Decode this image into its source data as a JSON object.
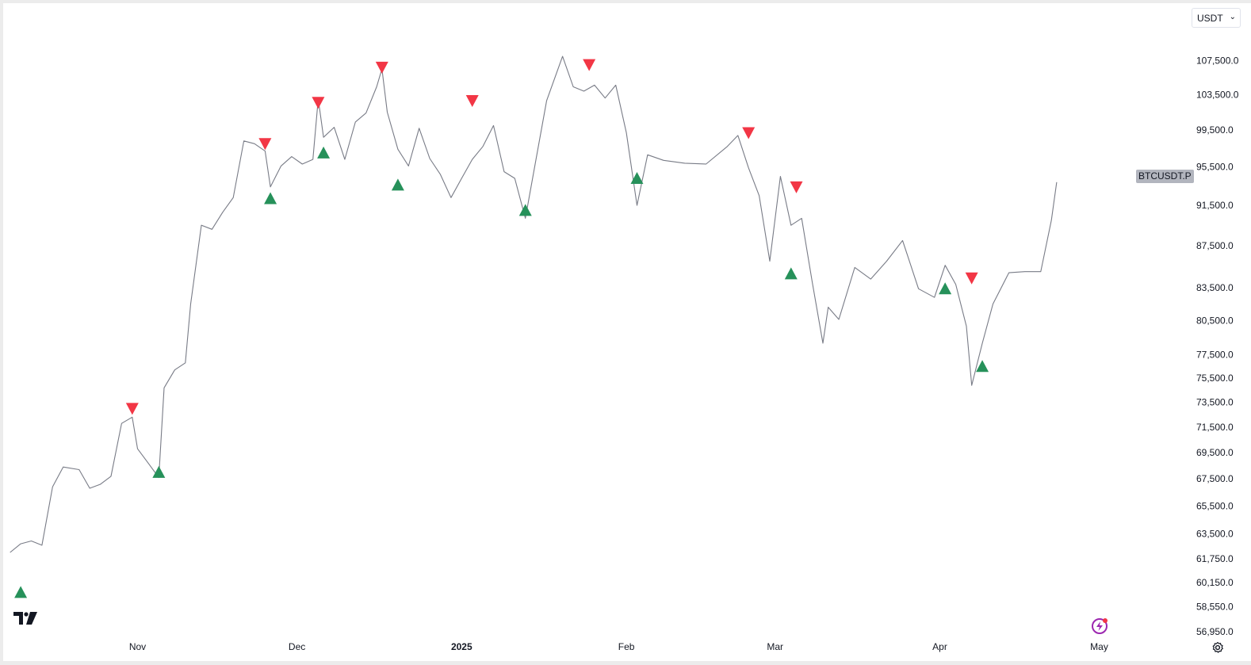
{
  "currency": {
    "label": "USDT",
    "chevron": "⌄"
  },
  "symbol_tag": "BTCUSDT.P",
  "icons": {
    "logo": "tradingview-logo-icon",
    "flash": "lightning-icon",
    "settings": "gear-icon"
  },
  "colors": {
    "price_line": "#787b86",
    "up_marker": "#26915a",
    "down_marker": "#f23645"
  },
  "chart_data": {
    "type": "line",
    "series": [
      {
        "name": "BTCUSDT.P",
        "x": [
          "2024-10-08",
          "2024-10-10",
          "2024-10-12",
          "2024-10-14",
          "2024-10-16",
          "2024-10-18",
          "2024-10-21",
          "2024-10-23",
          "2024-10-25",
          "2024-10-27",
          "2024-10-29",
          "2024-10-31",
          "2024-11-01",
          "2024-11-03",
          "2024-11-05",
          "2024-11-06",
          "2024-11-08",
          "2024-11-10",
          "2024-11-11",
          "2024-11-13",
          "2024-11-15",
          "2024-11-17",
          "2024-11-19",
          "2024-11-21",
          "2024-11-23",
          "2024-11-25",
          "2024-11-26",
          "2024-11-28",
          "2024-11-30",
          "2024-12-02",
          "2024-12-04",
          "2024-12-05",
          "2024-12-06",
          "2024-12-08",
          "2024-12-10",
          "2024-12-12",
          "2024-12-14",
          "2024-12-16",
          "2024-12-17",
          "2024-12-18",
          "2024-12-20",
          "2024-12-22",
          "2024-12-24",
          "2024-12-26",
          "2024-12-28",
          "2024-12-30",
          "2025-01-01",
          "2025-01-03",
          "2025-01-05",
          "2025-01-07",
          "2025-01-09",
          "2025-01-11",
          "2025-01-13",
          "2025-01-15",
          "2025-01-17",
          "2025-01-20",
          "2025-01-22",
          "2025-01-24",
          "2025-01-26",
          "2025-01-28",
          "2025-01-30",
          "2025-02-01",
          "2025-02-03",
          "2025-02-05",
          "2025-02-08",
          "2025-02-12",
          "2025-02-16",
          "2025-02-20",
          "2025-02-22",
          "2025-02-24",
          "2025-02-26",
          "2025-02-28",
          "2025-03-02",
          "2025-03-04",
          "2025-03-06",
          "2025-03-08",
          "2025-03-10",
          "2025-03-11",
          "2025-03-13",
          "2025-03-16",
          "2025-03-19",
          "2025-03-22",
          "2025-03-25",
          "2025-03-28",
          "2025-03-31",
          "2025-04-02",
          "2025-04-04",
          "2025-04-06",
          "2025-04-07",
          "2025-04-09",
          "2025-04-11",
          "2025-04-14",
          "2025-04-17",
          "2025-04-20",
          "2025-04-22",
          "2025-04-23"
        ],
        "y": [
          62200,
          62800,
          63000,
          62700,
          66900,
          68400,
          68200,
          66800,
          67100,
          67700,
          71800,
          72300,
          69800,
          68700,
          67600,
          74700,
          76200,
          76800,
          82000,
          89500,
          89100,
          90800,
          92300,
          98300,
          98000,
          97200,
          93400,
          95600,
          96600,
          95800,
          96300,
          103000,
          98700,
          99800,
          96300,
          100400,
          101400,
          104400,
          106500,
          101500,
          97400,
          95600,
          99700,
          96400,
          94700,
          92300,
          94300,
          96300,
          97700,
          100000,
          95000,
          94300,
          90200,
          96300,
          102800,
          108000,
          104400,
          103900,
          104600,
          103100,
          104600,
          99200,
          91500,
          96800,
          96200,
          95900,
          95800,
          97700,
          98900,
          95400,
          92500,
          86000,
          94500,
          89500,
          90200,
          84000,
          78500,
          81700,
          80600,
          85400,
          84300,
          86000,
          88000,
          83400,
          82600,
          85600,
          83800,
          80000,
          74900,
          78500,
          82000,
          84900,
          85000,
          85000,
          90000,
          93900
        ],
        "up_markers": [
          [
            "2024-10-10",
            59500
          ],
          [
            "2024-11-05",
            68000
          ],
          [
            "2024-11-26",
            92200
          ],
          [
            "2024-12-06",
            97000
          ],
          [
            "2024-12-20",
            93600
          ],
          [
            "2025-01-13",
            91000
          ],
          [
            "2025-02-03",
            94300
          ],
          [
            "2025-03-04",
            84800
          ],
          [
            "2025-04-02",
            83400
          ],
          [
            "2025-04-09",
            76500
          ]
        ],
        "down_markers": [
          [
            "2024-10-31",
            73000
          ],
          [
            "2024-11-25",
            98000
          ],
          [
            "2024-12-05",
            102600
          ],
          [
            "2024-12-17",
            106700
          ],
          [
            "2025-01-03",
            102800
          ],
          [
            "2025-01-25",
            107000
          ],
          [
            "2025-02-24",
            99200
          ],
          [
            "2025-03-05",
            93400
          ],
          [
            "2025-04-07",
            84400
          ]
        ]
      }
    ],
    "x_ticks": [
      {
        "date": "2024-11-01",
        "label": "Nov"
      },
      {
        "date": "2024-12-01",
        "label": "Dec"
      },
      {
        "date": "2025-01-01",
        "label": "2025"
      },
      {
        "date": "2025-02-01",
        "label": "Feb"
      },
      {
        "date": "2025-03-01",
        "label": "Mar"
      },
      {
        "date": "2025-04-01",
        "label": "Apr"
      },
      {
        "date": "2025-05-01",
        "label": "May"
      }
    ],
    "y_ticks": [
      107500,
      103500,
      99500,
      95500,
      91500,
      87500,
      83500,
      80500,
      77500,
      75500,
      73500,
      71500,
      69500,
      67500,
      65500,
      63500,
      61750,
      60150,
      58550,
      56950
    ],
    "y_tick_labels": [
      "107,500.0",
      "103,500.0",
      "99,500.0",
      "95,500.0",
      "91,500.0",
      "87,500.0",
      "83,500.0",
      "80,500.0",
      "77,500.0",
      "75,500.0",
      "73,500.0",
      "71,500.0",
      "69,500.0",
      "67,500.0",
      "65,500.0",
      "63,500.0",
      "61,750.0",
      "60,150.0",
      "58,550.0",
      "56,950.0"
    ],
    "y_scale": "log",
    "xlim": [
      "2024-10-07",
      "2025-05-06"
    ],
    "ylim": [
      56950,
      111000
    ],
    "grid": false,
    "legend": "none"
  }
}
